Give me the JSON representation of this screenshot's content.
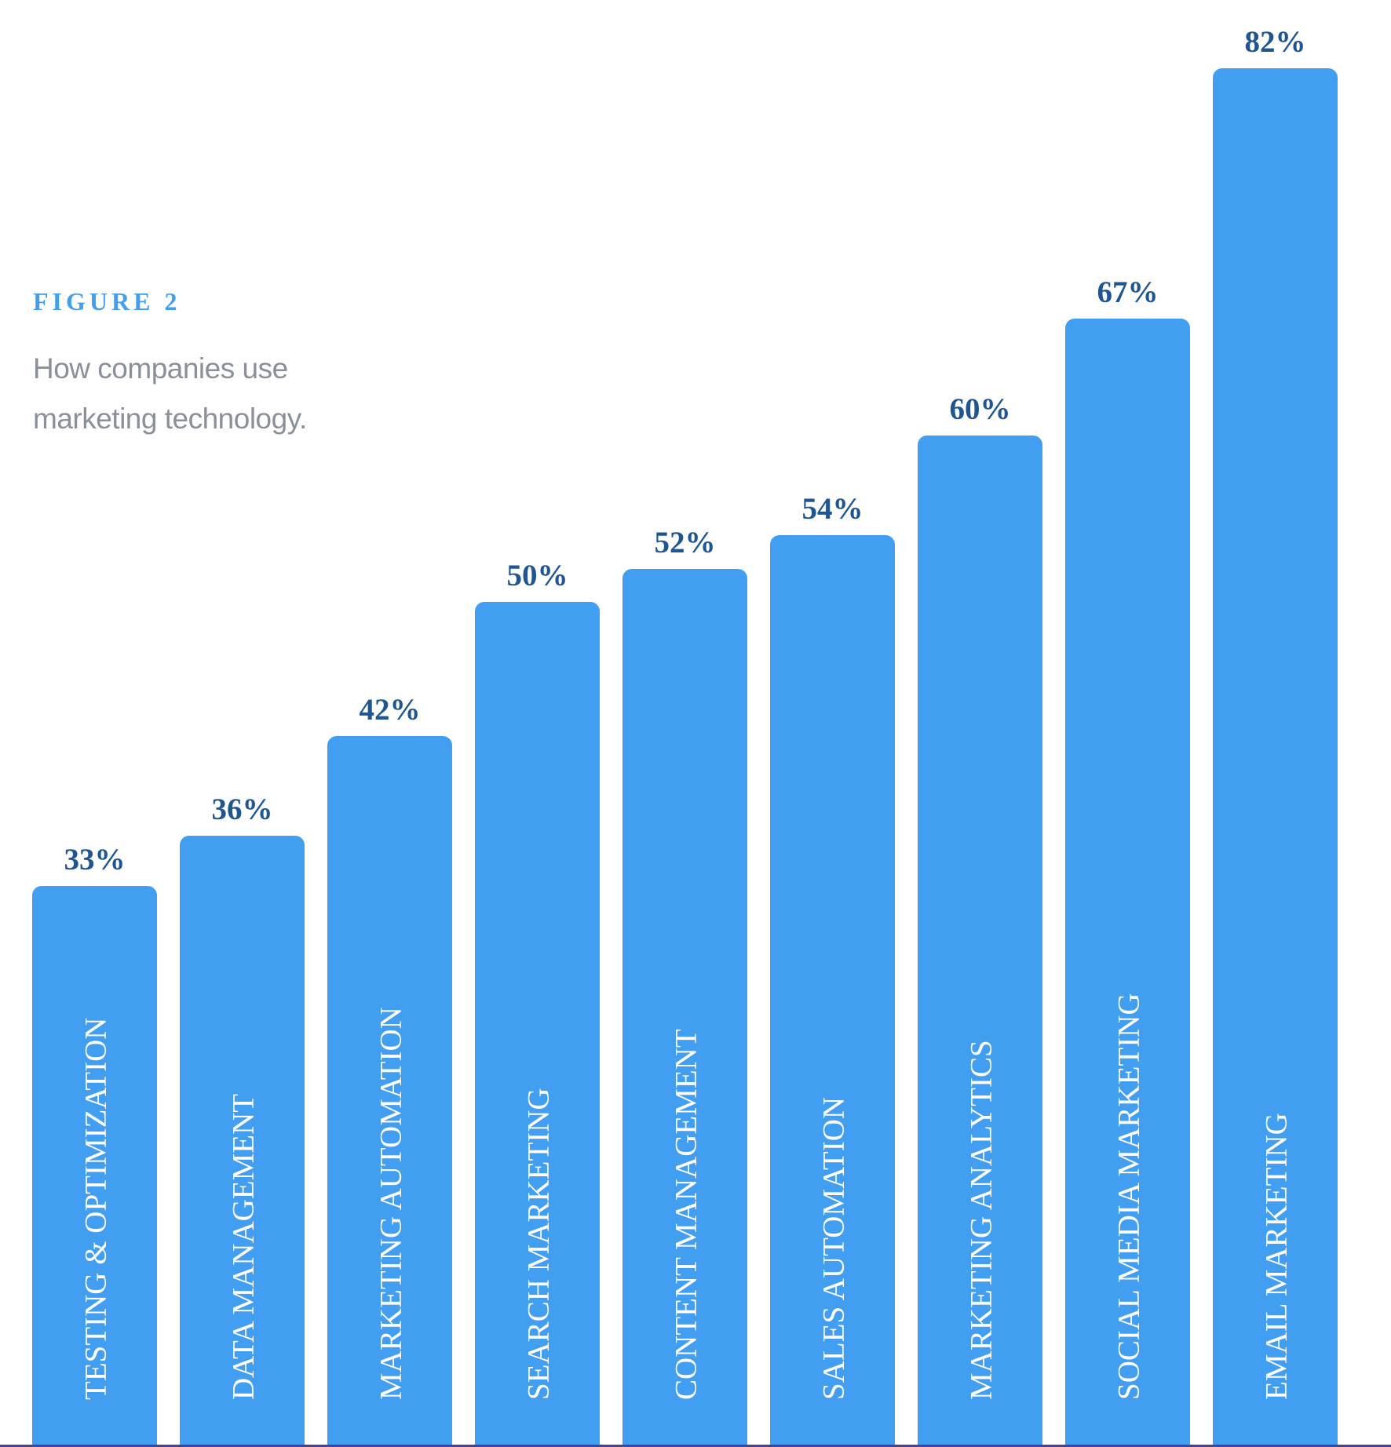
{
  "figure": {
    "label": "FIGURE 2",
    "caption_lines": [
      "How companies use",
      "marketing technology."
    ]
  },
  "colors": {
    "bar": "#429ef0",
    "value_label": "#1f5591",
    "figure_label": "#429ef0",
    "caption": "#8a9099",
    "bar_text": "#ffffff",
    "bottom_rule": "#4b3f9c"
  },
  "chart_data": {
    "type": "bar",
    "title": "FIGURE 2 — How companies use marketing technology.",
    "xlabel": "",
    "ylabel": "",
    "ylim": [
      0,
      100
    ],
    "grid": false,
    "legend": "none",
    "orientation": "vertical",
    "category_labels_position": "inside bars, rotated 90°",
    "categories": [
      "TESTING & OPTIMIZATION",
      "DATA MANAGEMENT",
      "MARKETING AUTOMATION",
      "SEARCH MARKETING",
      "CONTENT MANAGEMENT",
      "SALES AUTOMATION",
      "MARKETING ANALYTICS",
      "SOCIAL MEDIA MARKETING",
      "EMAIL MARKETING"
    ],
    "values": [
      33,
      36,
      42,
      50,
      52,
      54,
      60,
      67,
      82
    ],
    "value_labels": [
      "33%",
      "36%",
      "42%",
      "50%",
      "52%",
      "54%",
      "60%",
      "67%",
      "82%"
    ]
  }
}
